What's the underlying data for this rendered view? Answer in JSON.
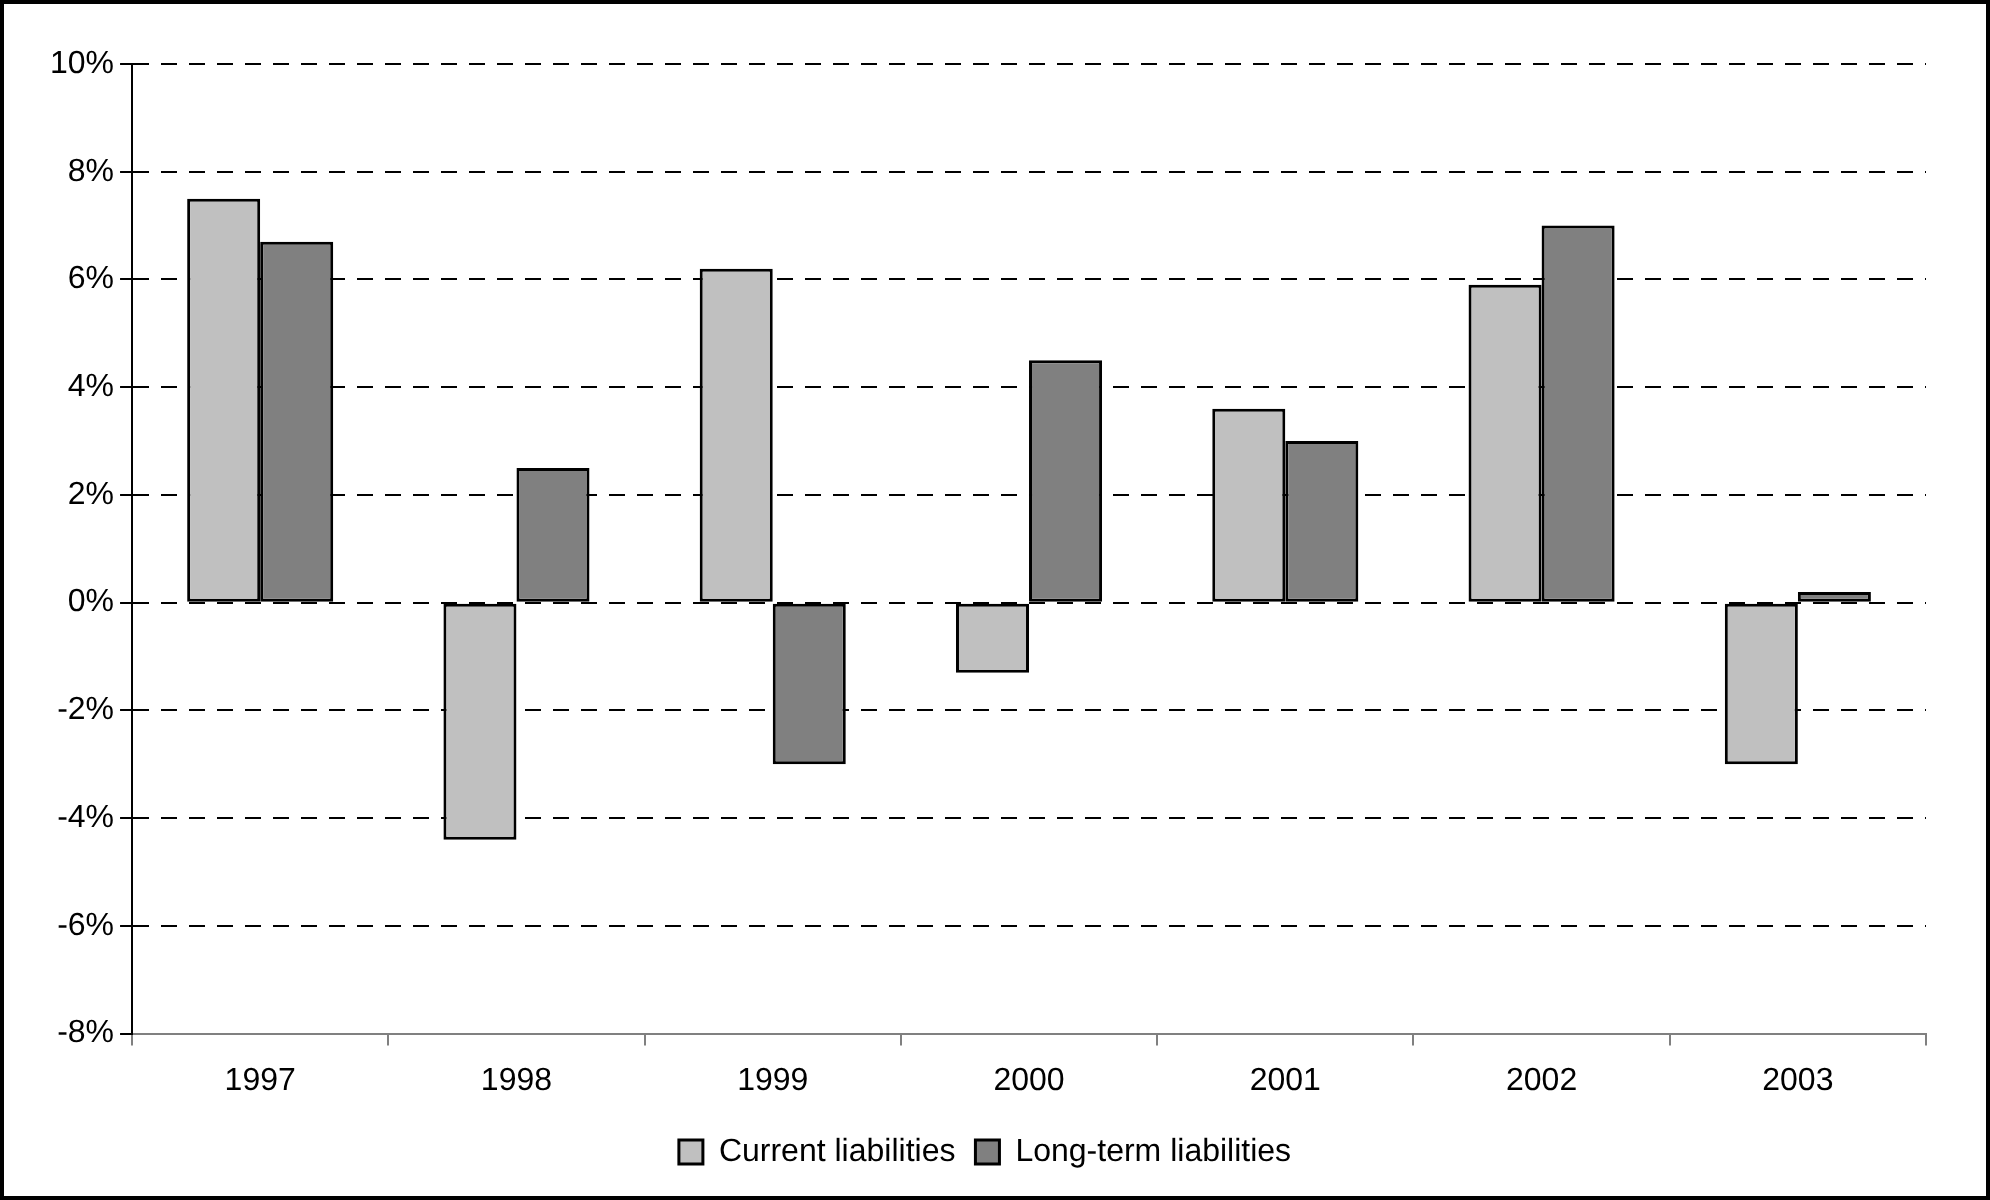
{
  "chart_data": {
    "type": "bar",
    "categories": [
      "1997",
      "1998",
      "1999",
      "2000",
      "2001",
      "2002",
      "2003"
    ],
    "series": [
      {
        "name": "Current liabilities",
        "color": "#c0c0c0",
        "values": [
          7.5,
          -4.4,
          6.2,
          -1.3,
          3.6,
          5.9,
          -3.0
        ]
      },
      {
        "name": "Long-term liabilities",
        "color": "#808080",
        "values": [
          6.7,
          2.5,
          -3.0,
          4.5,
          3.0,
          7.0,
          0.2
        ]
      }
    ],
    "ylim": [
      -8,
      10
    ],
    "yticks": [
      {
        "value": -8,
        "label": "-8%"
      },
      {
        "value": -6,
        "label": "-6%"
      },
      {
        "value": -4,
        "label": "-4%"
      },
      {
        "value": -2,
        "label": "-2%"
      },
      {
        "value": 0,
        "label": "0%"
      },
      {
        "value": 2,
        "label": "2%"
      },
      {
        "value": 4,
        "label": "4%"
      },
      {
        "value": 6,
        "label": "6%"
      },
      {
        "value": 8,
        "label": "8%"
      },
      {
        "value": 10,
        "label": "10%"
      }
    ],
    "grid": "y",
    "legend": "bottom"
  }
}
